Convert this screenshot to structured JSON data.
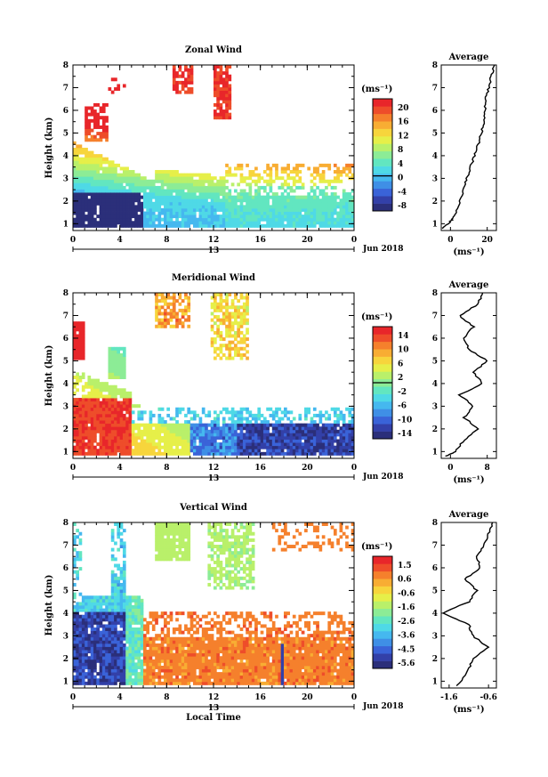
{
  "colors": [
    "#2b2f7a",
    "#3340a8",
    "#3a63d8",
    "#3f8fe6",
    "#45b8ef",
    "#4fd9e6",
    "#62e6c0",
    "#8cec96",
    "#b9f06a",
    "#e6ef49",
    "#f7d53c",
    "#f8ad33",
    "#f5802c",
    "#ee4d2a",
    "#e8262a"
  ],
  "chart_data": [
    {
      "type": "heatmap",
      "title": "Zonal Wind",
      "ylabel": "Height (km)",
      "x_ticks": [
        "0",
        "4",
        "8",
        "12",
        "16",
        "20",
        "0"
      ],
      "y_ticks": [
        "1",
        "2",
        "3",
        "4",
        "5",
        "6",
        "7",
        "8"
      ],
      "date_label": "13",
      "month_label": "Jun 2018",
      "unit": "(ms⁻¹)",
      "colorbar_ticks": [
        "20",
        "16",
        "12",
        "8",
        "4",
        "0",
        "-4",
        "-8"
      ],
      "vmin": -10,
      "vmax": 22,
      "xlim": [
        0,
        24
      ],
      "ylim": [
        0.7,
        8
      ],
      "avg_title": "Average",
      "avg_xlabel": "(ms⁻¹)",
      "avg_x_ticks": [
        "0",
        "20"
      ],
      "avg_xlim": [
        -5,
        25
      ],
      "profile": [
        [
          0.8,
          -4
        ],
        [
          1.0,
          -1
        ],
        [
          1.2,
          1
        ],
        [
          1.5,
          3
        ],
        [
          2.0,
          5
        ],
        [
          2.5,
          7
        ],
        [
          3.0,
          9
        ],
        [
          3.5,
          11
        ],
        [
          4.0,
          13
        ],
        [
          4.5,
          15
        ],
        [
          5.0,
          17
        ],
        [
          5.5,
          18
        ],
        [
          6.0,
          19
        ],
        [
          6.5,
          19
        ],
        [
          7.0,
          21
        ],
        [
          7.5,
          22
        ],
        [
          8.0,
          24
        ]
      ]
    },
    {
      "type": "heatmap",
      "title": "Meridional Wind",
      "ylabel": "Height (km)",
      "x_ticks": [
        "0",
        "4",
        "8",
        "12",
        "16",
        "20",
        "0"
      ],
      "y_ticks": [
        "1",
        "2",
        "3",
        "4",
        "5",
        "6",
        "7",
        "8"
      ],
      "date_label": "13",
      "month_label": "Jun 2018",
      "unit": "(ms⁻¹)",
      "colorbar_ticks": [
        "14",
        "10",
        "6",
        "2",
        "-2",
        "-6",
        "-10",
        "-14"
      ],
      "vmin": -16,
      "vmax": 16,
      "xlim": [
        0,
        24
      ],
      "ylim": [
        0.7,
        8
      ],
      "avg_title": "Average",
      "avg_xlabel": "(ms⁻¹)",
      "avg_x_ticks": [
        "0",
        "8"
      ],
      "avg_xlim": [
        -2,
        10
      ],
      "profile": [
        [
          0.8,
          -1
        ],
        [
          1.0,
          1
        ],
        [
          1.5,
          3
        ],
        [
          2.0,
          6
        ],
        [
          2.5,
          3
        ],
        [
          3.0,
          5
        ],
        [
          3.5,
          2
        ],
        [
          4.0,
          7
        ],
        [
          4.5,
          5
        ],
        [
          5.0,
          8
        ],
        [
          5.5,
          4
        ],
        [
          6.0,
          3
        ],
        [
          6.5,
          5
        ],
        [
          7.0,
          2
        ],
        [
          7.5,
          6
        ],
        [
          8.0,
          7
        ]
      ]
    },
    {
      "type": "heatmap",
      "title": "Vertical Wind",
      "ylabel": "Height (km)",
      "xlabel": "Local Time",
      "x_ticks": [
        "0",
        "4",
        "8",
        "12",
        "16",
        "20",
        "0"
      ],
      "y_ticks": [
        "1",
        "2",
        "3",
        "4",
        "5",
        "6",
        "7",
        "8"
      ],
      "date_label": "13",
      "month_label": "Jun 2018",
      "unit": "(ms⁻¹)",
      "colorbar_ticks": [
        "1.5",
        "0.6",
        "-0.6",
        "-1.6",
        "-2.6",
        "-3.6",
        "-4.5",
        "-5.6"
      ],
      "vmin": -6,
      "vmax": 2,
      "xlim": [
        0,
        24
      ],
      "ylim": [
        0.7,
        8
      ],
      "avg_title": "Average",
      "avg_xlabel": "(ms⁻¹)",
      "avg_x_ticks": [
        "-1.6",
        "-0.6"
      ],
      "avg_xlim": [
        -1.8,
        -0.4
      ],
      "profile": [
        [
          0.8,
          -1.4
        ],
        [
          1.5,
          -1.1
        ],
        [
          2.0,
          -1.0
        ],
        [
          2.5,
          -0.6
        ],
        [
          3.0,
          -1.0
        ],
        [
          3.5,
          -1.1
        ],
        [
          4.0,
          -1.75
        ],
        [
          4.5,
          -1.1
        ],
        [
          5.0,
          -0.9
        ],
        [
          5.5,
          -1.2
        ],
        [
          6.0,
          -0.8
        ],
        [
          6.5,
          -0.9
        ],
        [
          7.0,
          -0.7
        ],
        [
          7.5,
          -0.6
        ],
        [
          8.0,
          -0.5
        ]
      ]
    }
  ]
}
